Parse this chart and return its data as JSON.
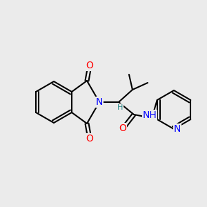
{
  "background_color": "#ebebeb",
  "bond_color": "#000000",
  "bond_width": 1.5,
  "atom_colors": {
    "N": "#0000ff",
    "O": "#ff0000",
    "H_label": "#2e8b8b",
    "C": "#000000"
  },
  "font_size_atoms": 9,
  "font_size_H": 8
}
